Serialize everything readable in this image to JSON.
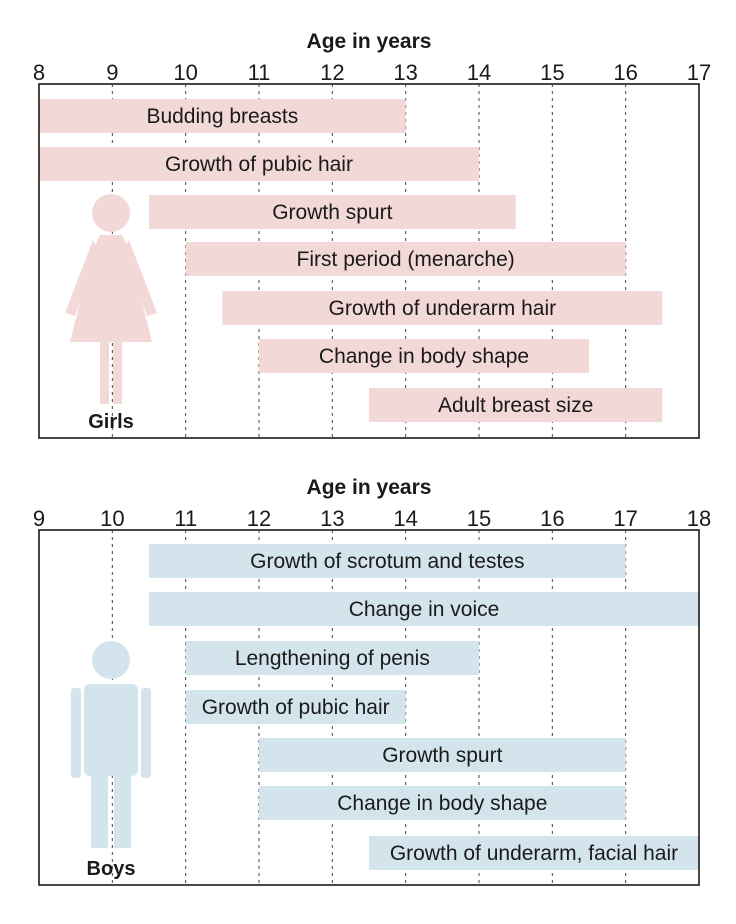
{
  "chart_data": [
    {
      "type": "bar",
      "orientation": "horizontal-range",
      "xlabel": "Age in years",
      "xlim": [
        8,
        17
      ],
      "ticks": [
        "8",
        "9",
        "10",
        "11",
        "12",
        "13",
        "14",
        "15",
        "16",
        "17"
      ],
      "grid": true,
      "figure_label": "Girls",
      "colors": {
        "bar": "#f3d8d8",
        "figure": "#f3d8d8"
      },
      "bars": [
        {
          "label": "Budding breasts",
          "start": 8,
          "end": 13
        },
        {
          "label": "Growth of pubic hair",
          "start": 8,
          "end": 14
        },
        {
          "label": "Growth spurt",
          "start": 9.5,
          "end": 14.5
        },
        {
          "label": "First period (menarche)",
          "start": 10,
          "end": 16
        },
        {
          "label": "Growth of underarm hair",
          "start": 10.5,
          "end": 16.5
        },
        {
          "label": "Change in body shape",
          "start": 11,
          "end": 15.5
        },
        {
          "label": "Adult breast size",
          "start": 12.5,
          "end": 16.5
        }
      ]
    },
    {
      "type": "bar",
      "orientation": "horizontal-range",
      "xlabel": "Age in years",
      "xlim": [
        9,
        18
      ],
      "ticks": [
        "9",
        "10",
        "11",
        "12",
        "13",
        "14",
        "15",
        "16",
        "17",
        "18"
      ],
      "grid": true,
      "figure_label": "Boys",
      "colors": {
        "bar": "#d3e4ec",
        "figure": "#d3e4ec"
      },
      "bars": [
        {
          "label": "Growth of scrotum and testes",
          "start": 10.5,
          "end": 17
        },
        {
          "label": "Change in voice",
          "start": 10.5,
          "end": 18
        },
        {
          "label": "Lengthening of penis",
          "start": 11,
          "end": 15
        },
        {
          "label": "Growth of pubic hair",
          "start": 11,
          "end": 14
        },
        {
          "label": "Growth spurt",
          "start": 12,
          "end": 17
        },
        {
          "label": "Change in body shape",
          "start": 12,
          "end": 17
        },
        {
          "label": "Growth of underarm, facial hair",
          "start": 13.5,
          "end": 18
        }
      ]
    }
  ]
}
